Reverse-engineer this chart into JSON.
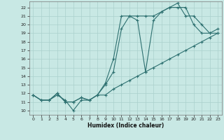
{
  "xlabel": "Humidex (Indice chaleur)",
  "bg_color": "#c8e8e4",
  "grid_color": "#aad0cc",
  "line_color": "#2d7070",
  "xlim": [
    -0.5,
    23.5
  ],
  "ylim": [
    9.5,
    22.7
  ],
  "xticks": [
    0,
    1,
    2,
    3,
    4,
    5,
    6,
    7,
    8,
    9,
    10,
    11,
    12,
    13,
    14,
    15,
    16,
    17,
    18,
    19,
    20,
    21,
    22,
    23
  ],
  "yticks": [
    10,
    11,
    12,
    13,
    14,
    15,
    16,
    17,
    18,
    19,
    20,
    21,
    22
  ],
  "line1_x": [
    0,
    1,
    2,
    3,
    4,
    5,
    6,
    7,
    8,
    9,
    10,
    11,
    12,
    13,
    14,
    15,
    16,
    17,
    18,
    19,
    20,
    21,
    22,
    23
  ],
  "line1_y": [
    11.8,
    11.2,
    11.2,
    11.8,
    11.2,
    10.0,
    11.2,
    11.2,
    11.8,
    11.8,
    12.5,
    13.0,
    13.5,
    14.0,
    14.5,
    15.0,
    15.5,
    16.0,
    16.5,
    17.0,
    17.5,
    18.0,
    18.5,
    19.0
  ],
  "line2_x": [
    0,
    1,
    2,
    3,
    4,
    5,
    6,
    7,
    8,
    9,
    10,
    11,
    12,
    13,
    14,
    15,
    16,
    17,
    18,
    19,
    20,
    21,
    22,
    23
  ],
  "line2_y": [
    11.8,
    11.2,
    11.2,
    12.0,
    11.0,
    11.0,
    11.5,
    11.2,
    11.8,
    13.2,
    16.0,
    21.0,
    21.0,
    21.0,
    21.0,
    21.0,
    21.5,
    22.0,
    22.5,
    21.0,
    21.0,
    20.0,
    19.0,
    19.0
  ],
  "line3_x": [
    0,
    1,
    2,
    3,
    4,
    5,
    6,
    7,
    8,
    9,
    10,
    11,
    12,
    13,
    14,
    15,
    16,
    17,
    18,
    19,
    20,
    21,
    22,
    23
  ],
  "line3_y": [
    11.8,
    11.2,
    11.2,
    12.0,
    11.0,
    11.0,
    11.5,
    11.2,
    11.8,
    13.0,
    14.5,
    19.5,
    21.0,
    20.5,
    14.5,
    20.5,
    21.5,
    22.0,
    22.0,
    22.0,
    20.0,
    19.0,
    19.0,
    19.5
  ]
}
